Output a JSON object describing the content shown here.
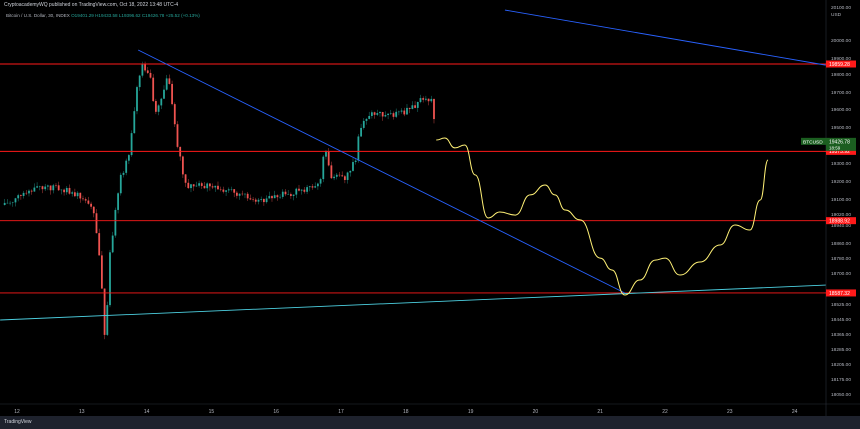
{
  "header": {
    "published": "CryptoacademyWQ published on TradingView.com, Oct 18, 2022 13:48 UTC-4",
    "symbol": "Bitcoin / U.S. Dollar, 30, INDEX",
    "ohlc": "O19401.29 H19433.58 L19396.62 C19426.78 +25.52 (+0.13%)"
  },
  "footer": {
    "brand": "TradingView"
  },
  "colors": {
    "bg": "#000000",
    "up": "#26a69a",
    "down": "#ef5350",
    "level": "#ff1a1a",
    "trend": "#2962ff",
    "support": "#4dd0e1",
    "projection": "#fff176"
  },
  "chart_data": {
    "type": "candlestick",
    "currency": "USD",
    "x_ticks": [
      "12",
      "13",
      "14",
      "15",
      "16",
      "17",
      "18",
      "19",
      "20",
      "21",
      "22",
      "23",
      "24"
    ],
    "y_ticks": [
      "20100.00",
      "20000.00",
      "19900.00",
      "19800.00",
      "19700.00",
      "19600.00",
      "19500.00",
      "19300.00",
      "19200.00",
      "19100.00",
      "19020.00",
      "18940.00",
      "18860.00",
      "18780.00",
      "18700.00",
      "18525.00",
      "18445.00",
      "18365.00",
      "18285.00",
      "18205.00",
      "18175.00",
      "18050.00"
    ],
    "price_path": [
      [
        11.81,
        19076
      ],
      [
        12.2,
        19159
      ],
      [
        12.66,
        19170
      ],
      [
        12.97,
        19131
      ],
      [
        13.2,
        19020
      ],
      [
        13.28,
        18770
      ],
      [
        13.36,
        18326
      ],
      [
        13.44,
        18826
      ],
      [
        13.59,
        19215
      ],
      [
        13.74,
        19381
      ],
      [
        13.87,
        19770
      ],
      [
        13.94,
        19854
      ],
      [
        14.05,
        19798
      ],
      [
        14.13,
        19604
      ],
      [
        14.23,
        19659
      ],
      [
        14.33,
        19798
      ],
      [
        14.44,
        19493
      ],
      [
        14.59,
        19187
      ],
      [
        14.82,
        19187
      ],
      [
        15.29,
        19159
      ],
      [
        15.75,
        19104
      ],
      [
        16.06,
        19131
      ],
      [
        16.37,
        19159
      ],
      [
        16.68,
        19187
      ],
      [
        16.75,
        19409
      ],
      [
        16.83,
        19242
      ],
      [
        17.06,
        19215
      ],
      [
        17.22,
        19326
      ],
      [
        17.29,
        19493
      ],
      [
        17.45,
        19576
      ],
      [
        17.76,
        19576
      ],
      [
        18.07,
        19604
      ],
      [
        18.22,
        19659
      ],
      [
        18.4,
        19659
      ],
      [
        18.47,
        19426
      ]
    ],
    "projection": [
      [
        18.47,
        19437
      ],
      [
        18.6,
        19448
      ],
      [
        18.76,
        19393
      ],
      [
        18.91,
        19409
      ],
      [
        19.07,
        19243
      ],
      [
        19.27,
        19004
      ],
      [
        19.45,
        19037
      ],
      [
        19.69,
        19020
      ],
      [
        19.92,
        19132
      ],
      [
        20.15,
        19187
      ],
      [
        20.3,
        19132
      ],
      [
        20.46,
        19048
      ],
      [
        20.69,
        18993
      ],
      [
        21.0,
        18781
      ],
      [
        21.18,
        18715
      ],
      [
        21.38,
        18576
      ],
      [
        21.61,
        18659
      ],
      [
        21.85,
        18770
      ],
      [
        22.0,
        18781
      ],
      [
        22.23,
        18687
      ],
      [
        22.54,
        18759
      ],
      [
        22.85,
        18854
      ],
      [
        23.08,
        18965
      ],
      [
        23.31,
        18937
      ],
      [
        23.47,
        19104
      ],
      [
        23.59,
        19326
      ]
    ],
    "levels": [
      {
        "price": 19859.28,
        "label": "19859.28"
      },
      {
        "price": 19373.92,
        "label": "19373.92"
      },
      {
        "price": 18988.92,
        "label": "18988.92"
      },
      {
        "price": 18587.32,
        "label": "18587.32"
      }
    ],
    "trendlines": [
      {
        "name": "",
        "color": "#2962ff",
        "from": [
          13.87,
          19937
        ],
        "to": [
          21.38,
          18587
        ]
      },
      {
        "name": "",
        "color": "#2962ff",
        "from": [
          19.53,
          20159
        ],
        "to": [
          24.48,
          19853
        ]
      },
      {
        "name": "",
        "color": "#4dd0e1",
        "from": [
          11.74,
          18437
        ],
        "to": [
          24.48,
          18631
        ]
      }
    ],
    "last_price": {
      "symbol": "BTCUSD",
      "price": "19426.78",
      "countdown": "18:59"
    }
  }
}
